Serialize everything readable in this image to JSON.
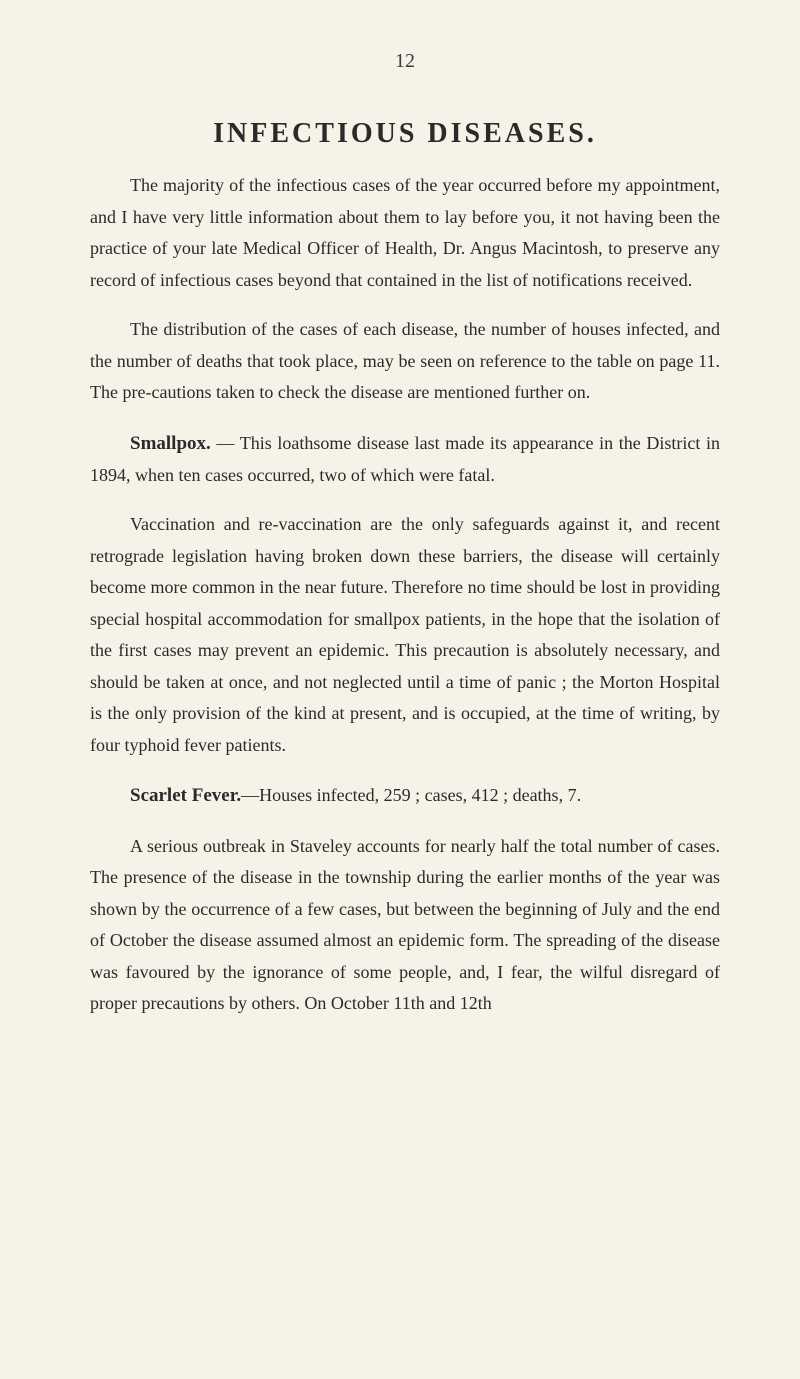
{
  "page": {
    "number": "12",
    "background_color": "#f5f2e8",
    "text_color": "#2a2a2a"
  },
  "title": "INFECTIOUS DISEASES.",
  "paragraphs": {
    "intro1": "The majority of the infectious cases of the year occurred before my appointment, and I have very little information about them to lay before you, it not having been the practice of your late Medical Officer of Health, Dr. Angus Macintosh, to preserve any record of infectious cases beyond that contained in the list of notifications received.",
    "intro2": "The distribution of the cases of each disease, the number of houses infected, and the number of deaths that took place, may be seen on reference to the table on page 11. The pre-cautions taken to check the disease are mentioned further on.",
    "smallpox_heading": "Smallpox.",
    "smallpox1": " — This loathsome disease last made its appearance in the District in 1894, when ten cases occurred, two of which were fatal.",
    "smallpox2": "Vaccination and re-vaccination are the only safeguards against it, and recent retrograde legislation having broken down these barriers, the disease will certainly become more common in the near future. Therefore no time should be lost in providing special hospital accommodation for smallpox patients, in the hope that the isolation of the first cases may prevent an epidemic. This precaution is absolutely necessary, and should be taken at once, and not neglected until a time of panic ; the Morton Hospital is the only provision of the kind at present, and is occupied, at the time of writing, by four typhoid fever patients.",
    "scarlet_heading": "Scarlet Fever.",
    "scarlet1": "—Houses infected, 259 ; cases, 412 ; deaths, 7.",
    "scarlet2": "A serious outbreak in Staveley accounts for nearly half the total number of cases. The presence of the disease in the township during the earlier months of the year was shown by the occurrence of a few cases, but between the beginning of July and the end of October the disease assumed almost an epidemic form. The spreading of the disease was favoured by the ignorance of some people, and, I fear, the wilful disregard of proper precautions by others. On October 11th and 12th"
  },
  "typography": {
    "body_fontsize": 18,
    "title_fontsize": 28,
    "heading_fontsize": 19,
    "line_height": 1.75,
    "font_family": "Georgia, Times New Roman, serif"
  }
}
